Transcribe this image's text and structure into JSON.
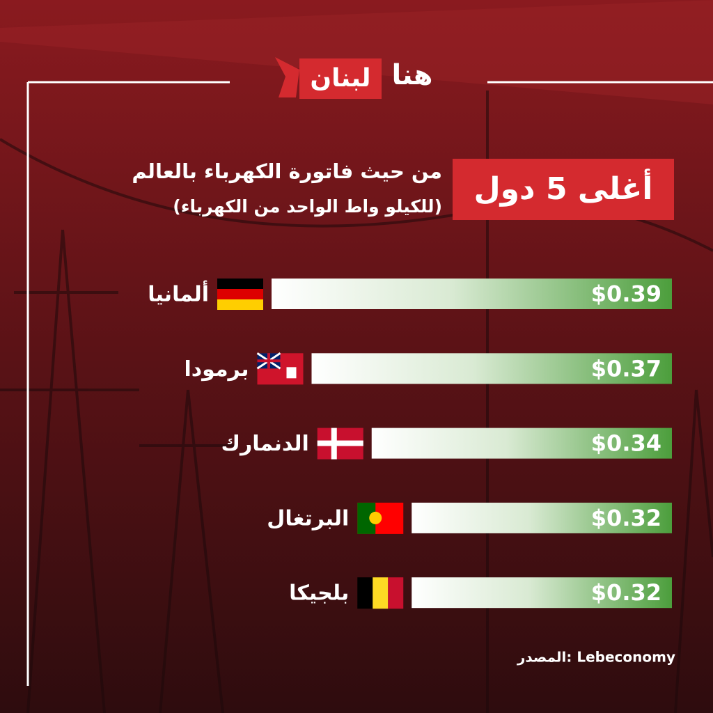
{
  "logo": {
    "right": "هنا",
    "left": "لبنان"
  },
  "chart_data": {
    "type": "bar",
    "orientation": "horizontal",
    "title": "أغلى 5 دول",
    "subtitle": "من حيث فاتورة الكهرباء بالعالم",
    "note": "(للكيلو واط الواحد من الكهرباء)",
    "source": "المصدر: Lebeconomy",
    "categories": [
      "ألمانيا",
      "برمودا",
      "الدنمارك",
      "البرتغال",
      "بلجيكا"
    ],
    "values": [
      0.39,
      0.37,
      0.34,
      0.32,
      0.32
    ],
    "value_labels": [
      "$0.39",
      "$0.37",
      "$0.34",
      "$0.32",
      "$0.32"
    ],
    "color": "#4c9e3c",
    "xlim": [
      0.19,
      0.39
    ]
  }
}
